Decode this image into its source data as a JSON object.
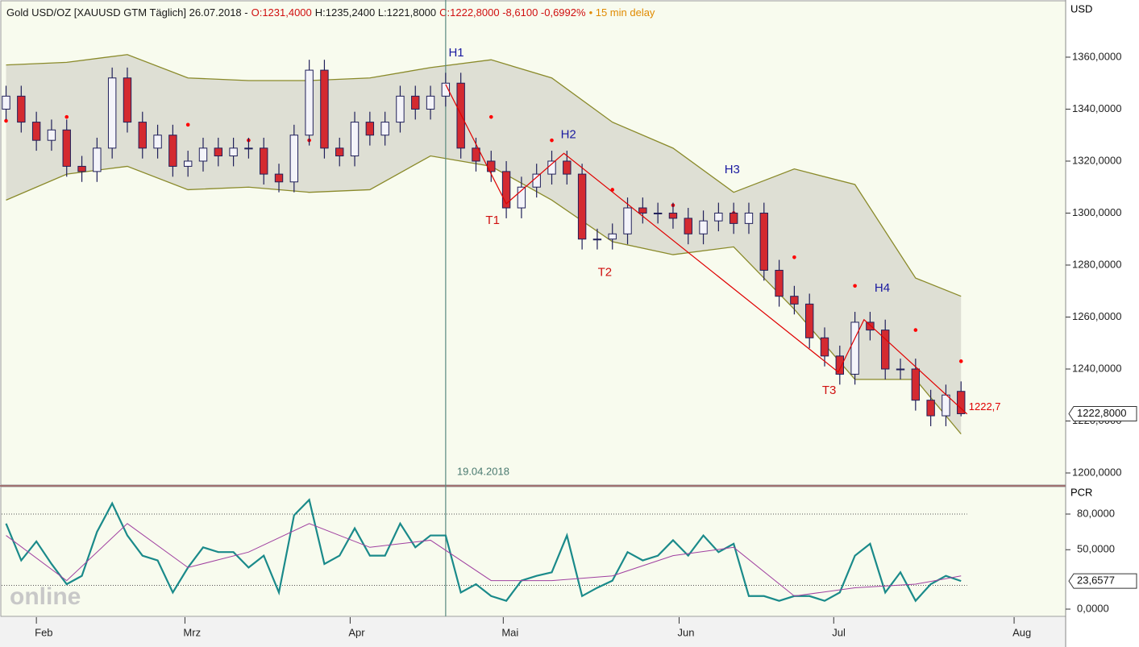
{
  "chart_data": {
    "type": "candlestick",
    "header": [
      {
        "text": "Gold USD/OZ [XAUUSD GTM Täglich] 26.07.2018 -",
        "color": "#1a1a1a"
      },
      {
        "text": "O:1231,4000",
        "color": "#d01010"
      },
      {
        "text": "H:1235,2400 L:1221,8000",
        "color": "#1a1a1a"
      },
      {
        "text": "C:1222,8000 -8,6100 -0,6992%",
        "color": "#d01010"
      },
      {
        "text": "• 15 min delay",
        "color": "#e08a00"
      }
    ],
    "y_axis_label": "USD",
    "categories": [
      null,
      null,
      null,
      null,
      null,
      null,
      null,
      null,
      null,
      null,
      null,
      null,
      null,
      null,
      null,
      null,
      null,
      null,
      null,
      null,
      null,
      null,
      null,
      null,
      null,
      null,
      null,
      null,
      null,
      null,
      null,
      null,
      null,
      null,
      null,
      null,
      null,
      null,
      null,
      null,
      null,
      null,
      null,
      null,
      null,
      null,
      null,
      null,
      null,
      null,
      null,
      null,
      null,
      null,
      null,
      null,
      null,
      null,
      null,
      null,
      null,
      null,
      null,
      null
    ],
    "open": [
      1340,
      1345,
      1335,
      1328,
      1332,
      1318,
      1316,
      1325,
      1352,
      1335,
      1325,
      1330,
      1318,
      1320,
      1325,
      1322,
      1325,
      1325,
      1315,
      1312,
      1330,
      1355,
      1325,
      1322,
      1335,
      1330,
      1335,
      1345,
      1340,
      1345,
      1350,
      1325,
      1320,
      1316,
      1302,
      1310,
      1315,
      1320,
      1315,
      1290,
      1290,
      1292,
      1302,
      1300,
      1300,
      1298,
      1292,
      1297,
      1300,
      1296,
      1300,
      1278,
      1268,
      1265,
      1252,
      1245,
      1238,
      1258,
      1255,
      1240,
      1240,
      1228,
      1222,
      1231.4
    ],
    "high": [
      1349,
      1349,
      1339,
      1336,
      1336,
      1322,
      1329,
      1356,
      1356,
      1339,
      1334,
      1334,
      1324,
      1329,
      1329,
      1329,
      1329,
      1329,
      1319,
      1334,
      1359,
      1359,
      1329,
      1339,
      1339,
      1339,
      1349,
      1349,
      1349,
      1354,
      1354,
      1329,
      1324,
      1320,
      1314,
      1319,
      1324,
      1324,
      1319,
      1294,
      1296,
      1306,
      1306,
      1304,
      1304,
      1302,
      1301,
      1304,
      1304,
      1304,
      1304,
      1282,
      1272,
      1269,
      1256,
      1249,
      1262,
      1262,
      1259,
      1244,
      1244,
      1232,
      1234,
      1235.24
    ],
    "low": [
      1336,
      1331,
      1324,
      1324,
      1314,
      1312,
      1312,
      1321,
      1331,
      1321,
      1321,
      1314,
      1314,
      1316,
      1318,
      1318,
      1321,
      1311,
      1308,
      1308,
      1326,
      1321,
      1318,
      1318,
      1326,
      1326,
      1331,
      1336,
      1336,
      1341,
      1321,
      1316,
      1312,
      1298,
      1298,
      1306,
      1311,
      1311,
      1286,
      1286,
      1286,
      1288,
      1296,
      1296,
      1294,
      1288,
      1288,
      1293,
      1292,
      1292,
      1274,
      1264,
      1261,
      1248,
      1241,
      1234,
      1234,
      1251,
      1236,
      1236,
      1224,
      1218,
      1218,
      1221.8
    ],
    "close": [
      1345,
      1335,
      1328,
      1332,
      1318,
      1316,
      1325,
      1352,
      1335,
      1325,
      1330,
      1318,
      1320,
      1325,
      1322,
      1325,
      1325,
      1315,
      1312,
      1330,
      1355,
      1325,
      1322,
      1335,
      1330,
      1335,
      1345,
      1340,
      1345,
      1350,
      1325,
      1320,
      1316,
      1302,
      1310,
      1315,
      1320,
      1315,
      1290,
      1290,
      1292,
      1302,
      1300,
      1300,
      1298,
      1292,
      1297,
      1300,
      1296,
      1300,
      1278,
      1268,
      1265,
      1252,
      1245,
      1238,
      1258,
      1255,
      1240,
      1240,
      1228,
      1222,
      1230,
      1222.8
    ],
    "up_color": "#f4f4fa",
    "down_color": "#d42a30",
    "edge_color": "#20205a",
    "xlim": [
      -0.4,
      69.9
    ],
    "ylim": [
      1195.35,
      1382.0
    ],
    "yticks": [
      {
        "value": 1200,
        "label": "1200,0000"
      },
      {
        "value": 1220,
        "label": "1220,0000"
      },
      {
        "value": 1240,
        "label": "1240,0000"
      },
      {
        "value": 1260,
        "label": "1260,0000"
      },
      {
        "value": 1280,
        "label": "1280,0000"
      },
      {
        "value": 1300,
        "label": "1300,0000"
      },
      {
        "value": 1320,
        "label": "1320,0000"
      },
      {
        "value": 1340,
        "label": "1340,0000"
      },
      {
        "value": 1360,
        "label": "1360,0000"
      }
    ],
    "xticks": [
      {
        "value": 2,
        "label": "Feb"
      },
      {
        "value": 11.8,
        "label": "Mrz"
      },
      {
        "value": 22.7,
        "label": "Apr"
      },
      {
        "value": 32.8,
        "label": "Mai"
      },
      {
        "value": 44.4,
        "label": "Jun"
      },
      {
        "value": 54.6,
        "label": "Jul"
      },
      {
        "value": 66.5,
        "label": "Aug"
      }
    ],
    "bands": {
      "color": "#8a8a2a",
      "fill": "#dedfd4",
      "x": [
        0,
        4,
        8,
        12,
        16,
        20,
        24,
        28,
        32,
        36,
        40,
        44,
        48,
        52,
        56,
        60,
        63
      ],
      "upper": [
        1357,
        1358,
        1361,
        1352,
        1351,
        1351,
        1352,
        1356,
        1359,
        1352,
        1335,
        1325,
        1308,
        1317,
        1311,
        1275,
        1268
      ],
      "lower": [
        1305,
        1315,
        1318,
        1309,
        1310,
        1308,
        1309,
        1322,
        1318,
        1305,
        1289,
        1284,
        1287,
        1263,
        1236,
        1236,
        1215
      ]
    },
    "sar": {
      "color": "#ff0000",
      "x": [
        0,
        4,
        8,
        12,
        16,
        20,
        24,
        28,
        32,
        36,
        40,
        44,
        48,
        52,
        56,
        60,
        63
      ],
      "values": [
        1335.5,
        1337,
        1340,
        1334,
        1328,
        1328,
        1332,
        1342,
        1337,
        1328,
        1309,
        1303,
        1300,
        1283,
        1272,
        1255,
        1243
      ]
    },
    "zigzag": {
      "color": "#e00000",
      "x": [
        29,
        33,
        36.8,
        54.9,
        56.6,
        63.4
      ],
      "values": [
        1349.5,
        1303.6,
        1323,
        1238.8,
        1259,
        1222.7
      ],
      "value_labels": [
        null,
        null,
        null,
        null,
        null,
        "1222,7"
      ]
    },
    "annotations": [
      {
        "text": "H1",
        "x": 29.7,
        "value": 1361.5,
        "color": "#1a1aa0"
      },
      {
        "text": "T1",
        "x": 32.1,
        "value": 1297,
        "color": "#d01010"
      },
      {
        "text": "H2",
        "x": 37.1,
        "value": 1330,
        "color": "#1a1aa0"
      },
      {
        "text": "T2",
        "x": 39.5,
        "value": 1277,
        "color": "#d01010"
      },
      {
        "text": "H3",
        "x": 47.9,
        "value": 1316.6,
        "color": "#1a1aa0"
      },
      {
        "text": "T3",
        "x": 54.3,
        "value": 1231.6,
        "color": "#d01010"
      },
      {
        "text": "H4",
        "x": 57.8,
        "value": 1271,
        "color": "#1a1aa0"
      }
    ],
    "marker": {
      "x": 29,
      "label": "19.04.2018"
    },
    "last_price": {
      "value": 1222.8,
      "label": "1222,8000"
    },
    "watermark": "online",
    "indicator": {
      "name": "PCR",
      "ylim": [
        -6.1,
        103.05
      ],
      "yticks": [
        {
          "value": 0,
          "label": "0,0000"
        },
        {
          "value": 50,
          "label": "50,0000"
        },
        {
          "value": 80,
          "label": "80,0000"
        }
      ],
      "hlines": [
        80,
        20
      ],
      "series": [
        {
          "color": "#1a8a8a",
          "values": [
            72,
            41,
            57,
            38,
            21,
            28,
            65,
            89,
            62,
            45,
            41,
            14,
            35,
            52,
            48,
            48,
            35,
            45,
            14,
            79,
            92,
            38,
            45,
            68,
            45,
            45,
            72,
            52,
            62,
            62,
            14,
            21,
            11,
            7,
            24,
            28,
            31,
            62,
            11,
            18,
            24,
            48,
            41,
            45,
            58,
            45,
            62,
            48,
            55,
            11,
            11,
            7,
            11,
            11,
            7,
            14,
            45,
            55,
            14,
            31,
            7,
            21,
            28,
            23.6577
          ]
        },
        {
          "color": "#a040a0",
          "x": [
            0,
            4,
            8,
            12,
            16,
            20,
            24,
            28,
            32,
            36,
            40,
            44,
            48,
            52,
            56,
            60,
            63
          ],
          "values": [
            62,
            24,
            72,
            35,
            48,
            72,
            52,
            58,
            24,
            24,
            28,
            45,
            52,
            11,
            18,
            21,
            28
          ]
        }
      ],
      "last": {
        "value": 23.6577,
        "label": "23,6577"
      }
    }
  }
}
